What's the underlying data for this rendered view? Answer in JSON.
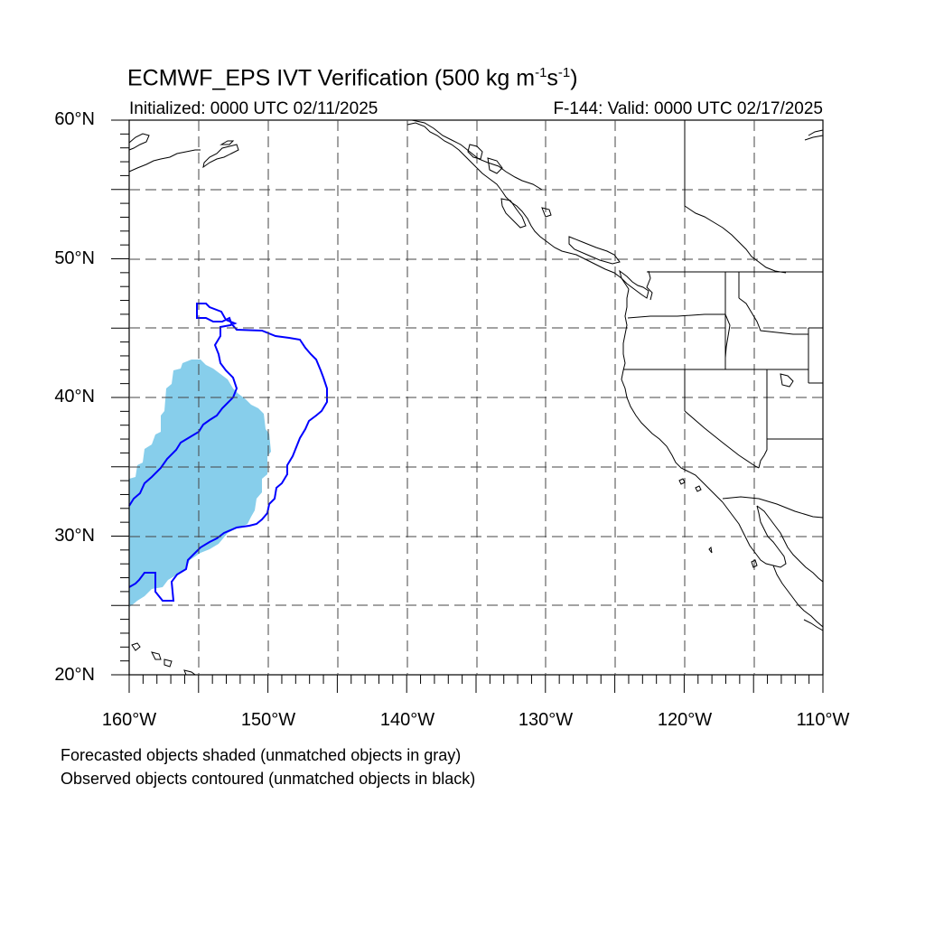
{
  "title": {
    "main": "ECMWF_EPS IVT Verification (500 kg m",
    "sup1": "-1",
    "mid": "s",
    "sup2": "-1",
    "end": ")"
  },
  "initialized": "Initialized: 0000 UTC 02/11/2025",
  "valid": "F-144: Valid: 0000 UTC 02/17/2025",
  "lat_labels": [
    "60°N",
    "50°N",
    "40°N",
    "30°N",
    "20°N"
  ],
  "lon_labels": [
    "160°W",
    "150°W",
    "140°W",
    "130°W",
    "120°W",
    "110°W"
  ],
  "footnotes": [
    "Forecasted objects shaded (unmatched objects in gray)",
    "Observed objects contoured (unmatched objects in black)"
  ],
  "colors": {
    "forecast_fill": "#87ceeb",
    "observed_contour": "#0000ff",
    "coastline": "#000000"
  },
  "map_extent": {
    "lon": [
      -160,
      -110
    ],
    "lat": [
      20,
      60
    ]
  }
}
